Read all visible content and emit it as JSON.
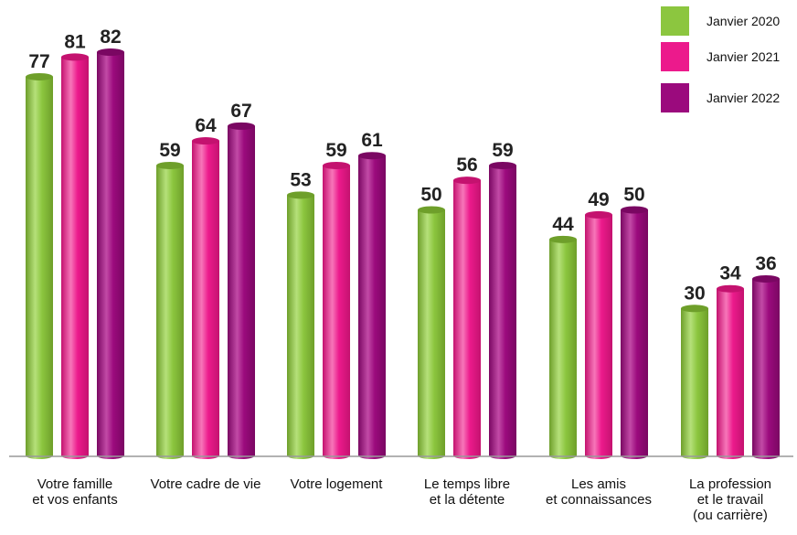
{
  "chart_data": {
    "type": "bar",
    "categories": [
      [
        "Votre famille",
        "et vos enfants"
      ],
      [
        "Votre cadre de vie"
      ],
      [
        "Votre logement"
      ],
      [
        "Le temps libre",
        "et la détente"
      ],
      [
        "Les amis",
        "et connaissances"
      ],
      [
        "La profession",
        "et le travail",
        "(ou carrière)"
      ]
    ],
    "series": [
      {
        "name": "Janvier 2020",
        "values": [
          77,
          59,
          53,
          50,
          44,
          30
        ]
      },
      {
        "name": "Janvier 2021",
        "values": [
          81,
          64,
          59,
          56,
          49,
          34
        ]
      },
      {
        "name": "Janvier 2022",
        "values": [
          82,
          67,
          61,
          59,
          50,
          36
        ]
      }
    ],
    "title": "",
    "xlabel": "",
    "ylabel": "",
    "ylim": [
      0,
      100
    ],
    "grid": false,
    "legend_position": "top-right"
  },
  "colors": {
    "series": [
      "#8cc63f",
      "#ec1a8c",
      "#9b0a7d"
    ],
    "series_dark": [
      "#6e9f2a",
      "#c4126f",
      "#7a0762"
    ],
    "series_light": [
      "#b5e07a",
      "#f776b9",
      "#c24aa6"
    ],
    "axis": "#999999"
  }
}
